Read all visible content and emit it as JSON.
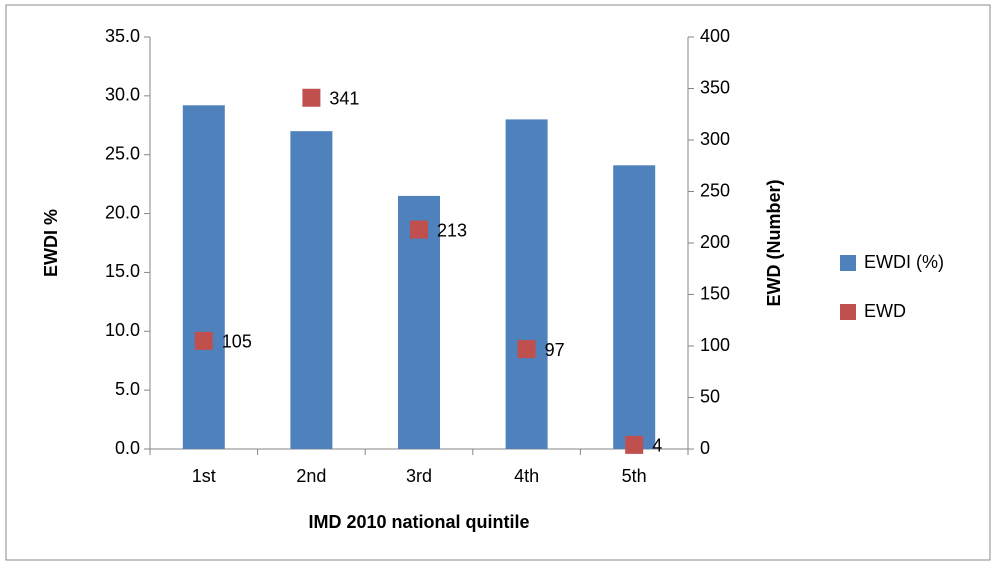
{
  "chart_data": {
    "type": "bar",
    "x_label": "IMD 2010 national quintile",
    "y_label": "EWDI %",
    "y2_label": "EWD (Number)",
    "categories": [
      "1st",
      "2nd",
      "3rd",
      "4th",
      "5th"
    ],
    "series": [
      {
        "name": "EWDI (%)",
        "color": "#4f81bd",
        "type": "bar",
        "values": [
          29.2,
          27.0,
          21.5,
          28.0,
          24.1
        ]
      },
      {
        "name": "EWD",
        "color": "#c0504d",
        "type": "scatter",
        "axis": "y2",
        "values": [
          105,
          341,
          213,
          97,
          4
        ],
        "data_labels": true
      }
    ],
    "ylim": [
      0,
      35
    ],
    "yticks": [
      {
        "value": 0,
        "label": "0.0"
      },
      {
        "value": 5,
        "label": "5.0"
      },
      {
        "value": 10,
        "label": "10.0"
      },
      {
        "value": 15,
        "label": "15.0"
      },
      {
        "value": 20,
        "label": "20.0"
      },
      {
        "value": 25,
        "label": "25.0"
      },
      {
        "value": 30,
        "label": "30.0"
      },
      {
        "value": 35,
        "label": "35.0"
      }
    ],
    "y2lim": [
      0,
      400
    ],
    "y2ticks": [
      0,
      50,
      100,
      150,
      200,
      250,
      300,
      350,
      400
    ],
    "grid": false,
    "legend": "right"
  }
}
